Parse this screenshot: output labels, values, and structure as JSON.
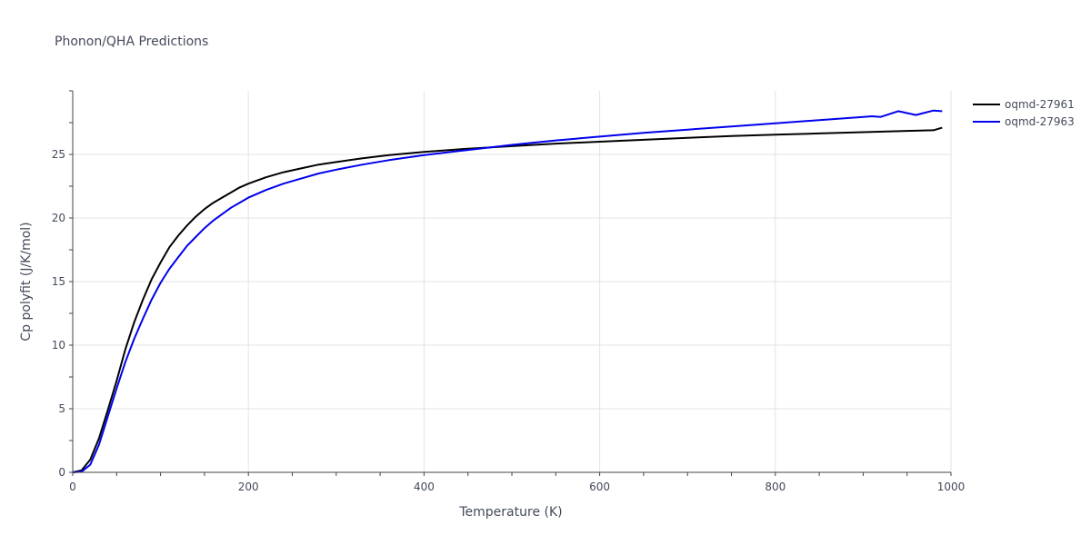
{
  "chart_data": {
    "type": "line",
    "title": "Phonon/QHA Predictions",
    "xlabel": "Temperature (K)",
    "ylabel": "Cp polyfit (J/K/mol)",
    "xlim": [
      0,
      1000
    ],
    "ylim": [
      0,
      30
    ],
    "x_ticks": [
      0,
      200,
      400,
      600,
      800,
      1000
    ],
    "y_ticks": [
      0,
      5,
      10,
      15,
      20,
      25
    ],
    "grid": true,
    "legend_position": "top-right",
    "series": [
      {
        "name": "oqmd-27961",
        "color": "#000000",
        "x": [
          0,
          10,
          20,
          30,
          40,
          50,
          60,
          70,
          80,
          90,
          100,
          110,
          120,
          130,
          140,
          150,
          160,
          170,
          180,
          190,
          200,
          220,
          240,
          260,
          280,
          300,
          330,
          360,
          400,
          450,
          500,
          550,
          600,
          650,
          700,
          750,
          800,
          850,
          900,
          950,
          980,
          990
        ],
        "y": [
          0,
          0.15,
          1.0,
          2.7,
          4.9,
          7.2,
          9.7,
          11.8,
          13.6,
          15.2,
          16.5,
          17.7,
          18.6,
          19.4,
          20.1,
          20.7,
          21.2,
          21.6,
          22.0,
          22.4,
          22.7,
          23.2,
          23.6,
          23.9,
          24.2,
          24.4,
          24.7,
          24.95,
          25.2,
          25.45,
          25.65,
          25.85,
          26.0,
          26.15,
          26.3,
          26.45,
          26.55,
          26.65,
          26.75,
          26.85,
          26.9,
          27.1
        ]
      },
      {
        "name": "oqmd-27963",
        "color": "#0000ee",
        "x": [
          0,
          10,
          20,
          30,
          40,
          50,
          60,
          70,
          80,
          90,
          100,
          110,
          120,
          130,
          140,
          150,
          160,
          170,
          180,
          190,
          200,
          220,
          240,
          260,
          280,
          300,
          330,
          360,
          400,
          450,
          500,
          550,
          600,
          650,
          700,
          750,
          800,
          850,
          900,
          910,
          920,
          940,
          960,
          980,
          990
        ],
        "y": [
          0,
          0.05,
          0.6,
          2.2,
          4.4,
          6.6,
          8.7,
          10.5,
          12.1,
          13.6,
          14.9,
          16.0,
          16.9,
          17.8,
          18.5,
          19.2,
          19.8,
          20.3,
          20.8,
          21.2,
          21.6,
          22.2,
          22.7,
          23.1,
          23.5,
          23.8,
          24.2,
          24.55,
          24.95,
          25.35,
          25.75,
          26.1,
          26.4,
          26.7,
          26.95,
          27.2,
          27.45,
          27.7,
          27.95,
          28.0,
          27.95,
          28.4,
          28.1,
          28.45,
          28.4
        ]
      }
    ]
  }
}
